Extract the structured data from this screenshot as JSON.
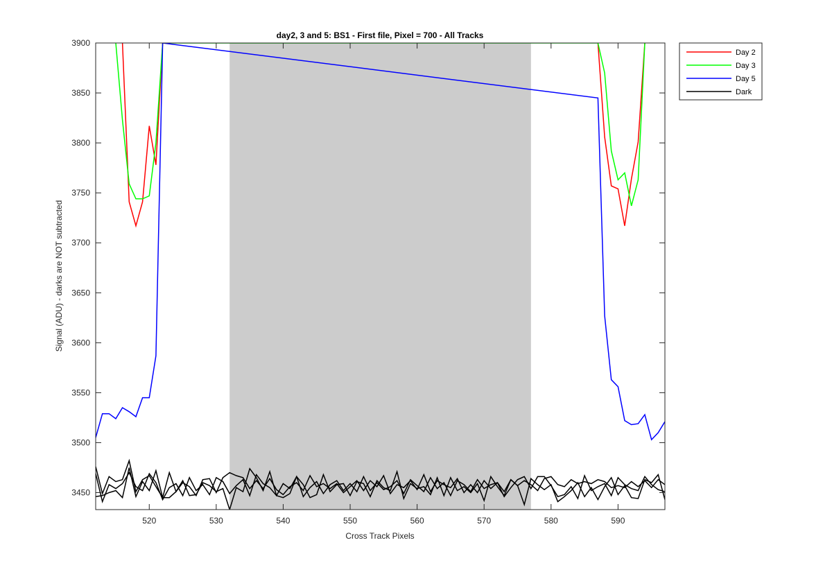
{
  "chart_data": {
    "type": "line",
    "title": "day2, 3 and 5: BS1 - First file, Pixel = 700 - All Tracks",
    "xlabel": "Cross Track Pixels",
    "ylabel": "Signal (ADU) - darks are NOT subtracted",
    "xlim": [
      512,
      597
    ],
    "ylim": [
      3433,
      3900
    ],
    "xticks": [
      520,
      530,
      540,
      550,
      560,
      570,
      580,
      590
    ],
    "yticks": [
      3450,
      3500,
      3550,
      3600,
      3650,
      3700,
      3750,
      3800,
      3850,
      3900
    ],
    "grid": false,
    "legend_placement": "outside-top-right",
    "shaded_region": {
      "x_start": 532,
      "x_end": 577,
      "color": "#cccccc"
    },
    "series": [
      {
        "name": "Day 2",
        "color": "#ff0000",
        "x": [
          516,
          517,
          518,
          519,
          520,
          521,
          522,
          523,
          586,
          587,
          588,
          589,
          590,
          591,
          592,
          593,
          594
        ],
        "y": [
          3900,
          3741,
          3717,
          3741,
          3817,
          3778,
          3900,
          4200,
          4200,
          3900,
          3806,
          3757,
          3754,
          3717,
          3764,
          3801,
          3900
        ]
      },
      {
        "name": "Day 3",
        "color": "#00ff00",
        "x": [
          515,
          516,
          517,
          518,
          519,
          520,
          521,
          522,
          587,
          588,
          589,
          590,
          591,
          592,
          593,
          594
        ],
        "y": [
          3900,
          3823,
          3759,
          3744,
          3744,
          3747,
          3800,
          3900,
          3900,
          3870,
          3792,
          3763,
          3770,
          3737,
          3763,
          3900
        ]
      },
      {
        "name": "Day 5",
        "color": "#0000ff",
        "x": [
          512,
          513,
          514,
          515,
          516,
          517,
          518,
          519,
          520,
          521,
          522,
          587,
          588,
          589,
          590,
          591,
          592,
          593,
          594,
          595,
          596,
          597
        ],
        "y": [
          3505,
          3529,
          3529,
          3524,
          3535,
          3531,
          3526,
          3545,
          3545,
          3587,
          3900,
          3845,
          3627,
          3563,
          3556,
          3522,
          3518,
          3519,
          3528,
          3503,
          3510,
          3521
        ]
      },
      {
        "name": "Dark",
        "color": "#000000",
        "x": [
          512,
          513,
          514,
          515,
          516,
          517,
          518,
          519,
          520,
          521,
          522,
          523,
          524,
          525,
          526,
          527,
          528,
          529,
          530,
          531,
          532,
          533,
          534,
          535,
          536,
          537,
          538,
          539,
          540,
          541,
          542,
          543,
          544,
          545,
          546,
          547,
          548,
          549,
          550,
          551,
          552,
          553,
          554,
          555,
          556,
          557,
          558,
          559,
          560,
          561,
          562,
          563,
          564,
          565,
          566,
          567,
          568,
          569,
          570,
          571,
          572,
          573,
          574,
          575,
          576,
          577,
          578,
          579,
          580,
          581,
          582,
          583,
          584,
          585,
          586,
          587,
          588,
          589,
          590,
          591,
          592,
          593,
          594,
          595,
          596,
          597
        ],
        "y": [
          3476,
          3449,
          3466,
          3461,
          3463,
          3482,
          3451,
          3463,
          3467,
          3456,
          3445,
          3470,
          3451,
          3460,
          3456,
          3447,
          3463,
          3464,
          3450,
          3465,
          3470,
          3467,
          3465,
          3454,
          3462,
          3454,
          3464,
          3453,
          3448,
          3456,
          3460,
          3452,
          3467,
          3456,
          3459,
          3454,
          3459,
          3450,
          3456,
          3462,
          3452,
          3462,
          3456,
          3467,
          3449,
          3458,
          3455,
          3462,
          3453,
          3468,
          3451,
          3462,
          3458,
          3455,
          3464,
          3450,
          3458,
          3450,
          3462,
          3454,
          3460,
          3451,
          3463,
          3457,
          3462,
          3458,
          3452,
          3464,
          3466,
          3458,
          3456,
          3463,
          3459,
          3461,
          3459,
          3463,
          3461,
          3455,
          3457,
          3455,
          3461,
          3456,
          3462,
          3455,
          3463,
          3458
        ]
      },
      {
        "name": "",
        "color": "#000000",
        "x": [
          512,
          513,
          514,
          515,
          516,
          517,
          518,
          519,
          520,
          521,
          522,
          523,
          524,
          525,
          526,
          527,
          528,
          529,
          530,
          531,
          532,
          533,
          534,
          535,
          536,
          537,
          538,
          539,
          540,
          541,
          542,
          543,
          544,
          545,
          546,
          547,
          548,
          549,
          550,
          551,
          552,
          553,
          554,
          555,
          556,
          557,
          558,
          559,
          560,
          561,
          562,
          563,
          564,
          565,
          566,
          567,
          568,
          569,
          570,
          571,
          572,
          573,
          574,
          575,
          576,
          577,
          578,
          579,
          580,
          581,
          582,
          583,
          584,
          585,
          586,
          587,
          588,
          589,
          590,
          591,
          592,
          593,
          594,
          595,
          596,
          597
        ],
        "y": [
          3469,
          3441,
          3458,
          3454,
          3459,
          3470,
          3456,
          3452,
          3469,
          3460,
          3443,
          3455,
          3459,
          3447,
          3465,
          3452,
          3458,
          3448,
          3465,
          3461,
          3449,
          3457,
          3463,
          3447,
          3468,
          3459,
          3455,
          3447,
          3459,
          3454,
          3466,
          3446,
          3455,
          3461,
          3449,
          3458,
          3462,
          3452,
          3459,
          3451,
          3466,
          3452,
          3460,
          3453,
          3456,
          3462,
          3449,
          3463,
          3457,
          3451,
          3465,
          3454,
          3460,
          3447,
          3462,
          3458,
          3451,
          3463,
          3454,
          3458,
          3460,
          3446,
          3455,
          3463,
          3466,
          3454,
          3466,
          3466,
          3457,
          3446,
          3448,
          3456,
          3444,
          3467,
          3452,
          3456,
          3459,
          3447,
          3465,
          3458,
          3454,
          3452,
          3466,
          3458,
          3453,
          3451
        ]
      },
      {
        "name": "",
        "color": "#000000",
        "x": [
          512,
          513,
          514,
          515,
          516,
          517,
          518,
          519,
          520,
          521,
          522,
          523,
          524,
          525,
          526,
          527,
          528,
          529,
          530,
          531,
          532,
          533,
          534,
          535,
          536,
          537,
          538,
          539,
          540,
          541,
          542,
          543,
          544,
          545,
          546,
          547,
          548,
          549,
          550,
          551,
          552,
          553,
          554,
          555,
          556,
          557,
          558,
          559,
          560,
          561,
          562,
          563,
          564,
          565,
          566,
          567,
          568,
          569,
          570,
          571,
          572,
          573,
          574,
          575,
          576,
          577,
          578,
          579,
          580,
          581,
          582,
          583,
          584,
          585,
          586,
          587,
          588,
          589,
          590,
          591,
          592,
          593,
          594,
          595,
          596,
          597
        ],
        "y": [
          3446,
          3447,
          3450,
          3452,
          3445,
          3475,
          3446,
          3461,
          3452,
          3472,
          3445,
          3445,
          3451,
          3462,
          3447,
          3448,
          3460,
          3457,
          3451,
          3454,
          3433,
          3455,
          3451,
          3474,
          3465,
          3452,
          3471,
          3447,
          3445,
          3449,
          3466,
          3458,
          3445,
          3448,
          3468,
          3451,
          3458,
          3459,
          3447,
          3461,
          3459,
          3446,
          3462,
          3455,
          3452,
          3471,
          3444,
          3459,
          3454,
          3456,
          3448,
          3465,
          3447,
          3465,
          3452,
          3456,
          3450,
          3459,
          3442,
          3466,
          3456,
          3447,
          3463,
          3457,
          3438,
          3464,
          3458,
          3453,
          3458,
          3441,
          3446,
          3452,
          3460,
          3446,
          3455,
          3443,
          3456,
          3465,
          3448,
          3457,
          3445,
          3444,
          3463,
          3460,
          3468,
          3443
        ]
      }
    ]
  }
}
